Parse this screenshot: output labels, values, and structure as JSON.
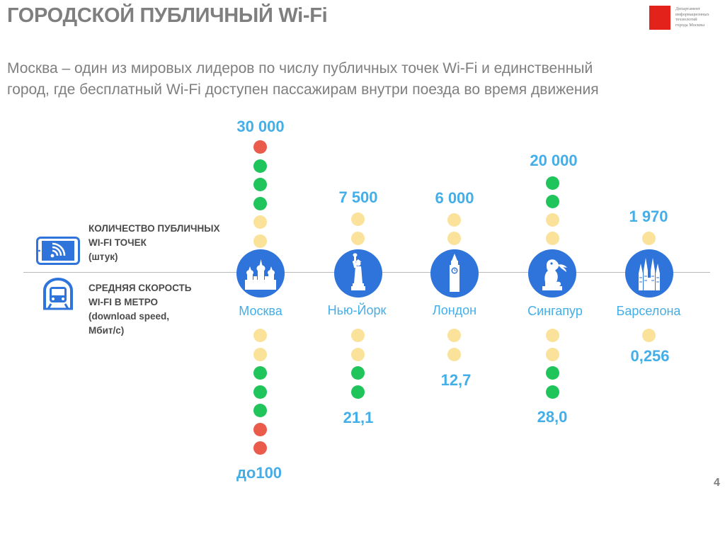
{
  "title": "ГОРОДСКОЙ ПУБЛИЧНЫЙ Wi-Fi",
  "subtitle": "Москва – один из мировых лидеров по числу публичных точек Wi-Fi и единственный город, где бесплатный Wi-Fi доступен пассажирам внутри поезда во время движения",
  "logo": {
    "text_lines": [
      "Департамент",
      "информационных",
      "технологий",
      "города Москвы"
    ]
  },
  "legend": {
    "points_line1": "КОЛИЧЕСТВО ПУБЛИЧНЫХ",
    "points_line2": "WI-FI ТОЧЕК",
    "points_line3": "(штук)",
    "speed_line1": "СРЕДНЯЯ СКОРОСТЬ",
    "speed_line2": "WI-FI В МЕТРО",
    "speed_line3": "(download speed,",
    "speed_line4": "Мбит/с)",
    "points_icon": "tablet-wifi-icon",
    "speed_icon": "metro-train-icon"
  },
  "colors": {
    "accent": "#44aee8",
    "icon_blue": "#2f74db",
    "red": "#eb5b4b",
    "green": "#1fc45b",
    "yellow": "#fbe29a"
  },
  "cities": [
    {
      "name": "Москва",
      "icon": "kremlin-icon",
      "points_label": "30 000",
      "points_value": 30000,
      "points_dots": [
        "red",
        "green",
        "green",
        "green",
        "yellow",
        "yellow"
      ],
      "speed_label": "до100",
      "speed_value": 100,
      "speed_dots": [
        "yellow",
        "yellow",
        "green",
        "green",
        "green",
        "red",
        "red"
      ]
    },
    {
      "name": "Нью-Йорк",
      "icon": "statue-of-liberty-icon",
      "points_label": "7 500",
      "points_value": 7500,
      "points_dots": [
        "yellow",
        "yellow"
      ],
      "speed_label": "21,1",
      "speed_value": 21.1,
      "speed_dots": [
        "yellow",
        "yellow",
        "green",
        "green"
      ]
    },
    {
      "name": "Лондон",
      "icon": "big-ben-icon",
      "points_label": "6 000",
      "points_value": 6000,
      "points_dots": [
        "yellow",
        "yellow"
      ],
      "speed_label": "12,7",
      "speed_value": 12.7,
      "speed_dots": [
        "yellow",
        "yellow"
      ]
    },
    {
      "name": "Сингапур",
      "icon": "merlion-icon",
      "points_label": "20 000",
      "points_value": 20000,
      "points_dots": [
        "green",
        "green",
        "yellow",
        "yellow"
      ],
      "speed_label": "28,0",
      "speed_value": 28.0,
      "speed_dots": [
        "yellow",
        "yellow",
        "green",
        "green"
      ]
    },
    {
      "name": "Барселона",
      "icon": "sagrada-familia-icon",
      "points_label": "1 970",
      "points_value": 1970,
      "points_dots": [
        "yellow"
      ],
      "speed_label": "0,256",
      "speed_value": 0.256,
      "speed_dots": [
        "yellow"
      ]
    }
  ],
  "page_number": "4"
}
